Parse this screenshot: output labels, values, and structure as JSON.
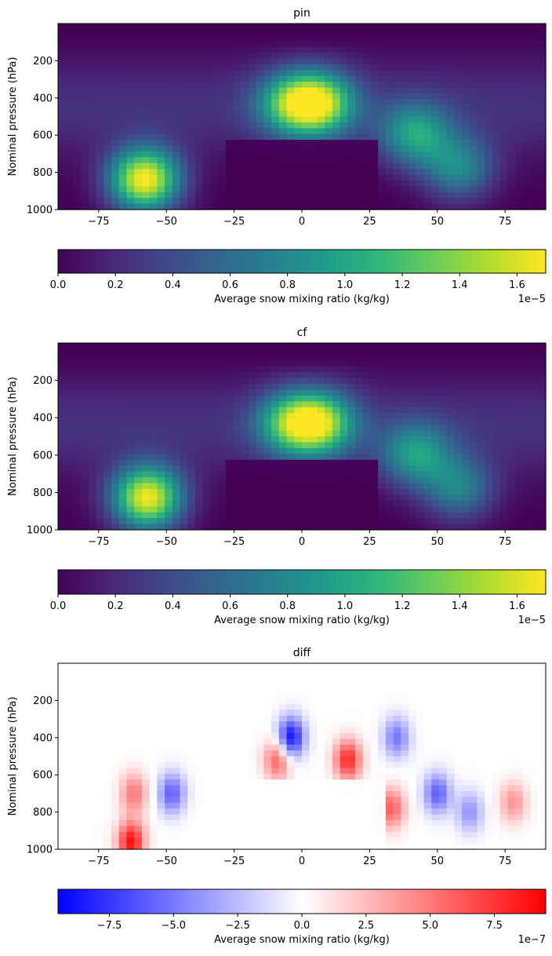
{
  "chart_data": [
    {
      "type": "heatmap",
      "title": "pin",
      "xlabel": "",
      "ylabel": "Nominal pressure (hPa)",
      "xlim": [
        -90,
        90
      ],
      "ylim": [
        1000,
        0
      ],
      "xticks": [
        -75,
        -50,
        -25,
        0,
        25,
        50,
        75
      ],
      "yticks": [
        200,
        400,
        600,
        800,
        1000
      ],
      "x_tick_labels": [
        "−75",
        "−50",
        "−25",
        "0",
        "25",
        "50",
        "75"
      ],
      "y_tick_labels": [
        "200",
        "400",
        "600",
        "800",
        "1000"
      ],
      "colormap": "viridis",
      "colorbar": {
        "label": "Average snow mixing ratio (kg/kg)",
        "range": [
          0,
          1.7e-05
        ],
        "ticks": [
          0,
          2e-06,
          4e-06,
          6e-06,
          8e-06,
          1e-05,
          1.2e-05,
          1.4e-05,
          1.6e-05
        ],
        "tick_labels": [
          "0.0",
          "0.2",
          "0.4",
          "0.6",
          "0.8",
          "1.0",
          "1.2",
          "1.4",
          "1.6"
        ],
        "offset_label": "1e−5"
      },
      "features": [
        {
          "lat": -58,
          "pressure": 840,
          "value": 1.7e-05
        },
        {
          "lat": -4,
          "pressure": 430,
          "value": 9.5e-06
        },
        {
          "lat": 7,
          "pressure": 430,
          "value": 1.2e-05
        },
        {
          "lat": 42,
          "pressure": 600,
          "value": 8.5e-06
        },
        {
          "lat": 58,
          "pressure": 780,
          "value": 7.5e-06
        }
      ]
    },
    {
      "type": "heatmap",
      "title": "cf",
      "xlabel": "",
      "ylabel": "Nominal pressure (hPa)",
      "xlim": [
        -90,
        90
      ],
      "ylim": [
        1000,
        0
      ],
      "xticks": [
        -75,
        -50,
        -25,
        0,
        25,
        50,
        75
      ],
      "yticks": [
        200,
        400,
        600,
        800,
        1000
      ],
      "x_tick_labels": [
        "−75",
        "−50",
        "−25",
        "0",
        "25",
        "50",
        "75"
      ],
      "y_tick_labels": [
        "200",
        "400",
        "600",
        "800",
        "1000"
      ],
      "colormap": "viridis",
      "colorbar": {
        "label": "Average snow mixing ratio (kg/kg)",
        "range": [
          0,
          1.7e-05
        ],
        "ticks": [
          0,
          2e-06,
          4e-06,
          6e-06,
          8e-06,
          1e-05,
          1.2e-05,
          1.4e-05,
          1.6e-05
        ],
        "tick_labels": [
          "0.0",
          "0.2",
          "0.4",
          "0.6",
          "0.8",
          "1.0",
          "1.2",
          "1.4",
          "1.6"
        ],
        "offset_label": "1e−5"
      },
      "features": [
        {
          "lat": -57,
          "pressure": 830,
          "value": 1.65e-05
        },
        {
          "lat": -4,
          "pressure": 430,
          "value": 9.5e-06
        },
        {
          "lat": 7,
          "pressure": 430,
          "value": 1.15e-05
        },
        {
          "lat": 42,
          "pressure": 600,
          "value": 8e-06
        },
        {
          "lat": 58,
          "pressure": 780,
          "value": 7e-06
        }
      ]
    },
    {
      "type": "heatmap",
      "title": "diff",
      "xlabel": "",
      "ylabel": "Nominal pressure (hPa)",
      "xlim": [
        -90,
        90
      ],
      "ylim": [
        1000,
        0
      ],
      "xticks": [
        -75,
        -50,
        -25,
        0,
        25,
        50,
        75
      ],
      "yticks": [
        200,
        400,
        600,
        800,
        1000
      ],
      "x_tick_labels": [
        "−75",
        "−50",
        "−25",
        "0",
        "25",
        "50",
        "75"
      ],
      "y_tick_labels": [
        "200",
        "400",
        "600",
        "800",
        "1000"
      ],
      "colormap": "bwr",
      "colorbar": {
        "label": "Average snow mixing ratio (kg/kg)",
        "range": [
          -9.5e-07,
          9.5e-07
        ],
        "ticks": [
          -7.5e-07,
          -5e-07,
          -2.5e-07,
          0,
          2.5e-07,
          5e-07,
          7.5e-07
        ],
        "tick_labels": [
          "−7.5",
          "−5.0",
          "−2.5",
          "0.0",
          "2.5",
          "5.0",
          "7.5"
        ],
        "offset_label": "1e−7"
      },
      "features": [
        {
          "lat": -63,
          "pressure": 960,
          "value": 9e-07
        },
        {
          "lat": -62,
          "pressure": 700,
          "value": 5e-07
        },
        {
          "lat": -48,
          "pressure": 700,
          "value": -6e-07
        },
        {
          "lat": -4,
          "pressure": 400,
          "value": -9e-07
        },
        {
          "lat": -9,
          "pressure": 520,
          "value": 6e-07
        },
        {
          "lat": 17,
          "pressure": 520,
          "value": 8e-07
        },
        {
          "lat": 35,
          "pressure": 400,
          "value": -5e-07
        },
        {
          "lat": 33,
          "pressure": 780,
          "value": 6e-07
        },
        {
          "lat": 50,
          "pressure": 700,
          "value": -6e-07
        },
        {
          "lat": 62,
          "pressure": 800,
          "value": -4e-07
        },
        {
          "lat": 78,
          "pressure": 750,
          "value": 4e-07
        }
      ]
    }
  ]
}
